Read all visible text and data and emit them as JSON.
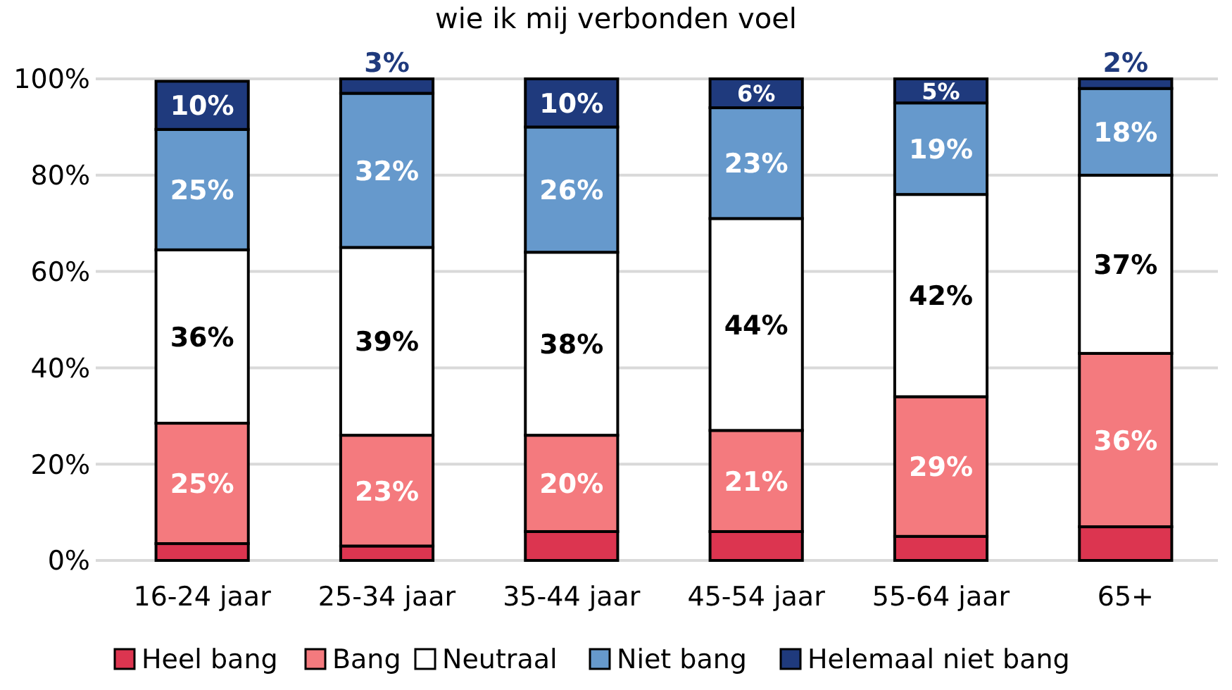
{
  "chart_data": {
    "type": "bar",
    "stacked": true,
    "title": "wie ik mij verbonden voel",
    "categories": [
      "16-24 jaar",
      "25-34 jaar",
      "35-44 jaar",
      "45-54 jaar",
      "55-64 jaar",
      "65+"
    ],
    "series": [
      {
        "name": "Heel bang",
        "color": "#dc3550",
        "values": [
          3.5,
          3,
          6,
          6,
          5,
          7
        ],
        "value_labels": [
          null,
          null,
          null,
          null,
          null,
          null
        ]
      },
      {
        "name": "Bang",
        "color": "#f47a7e",
        "values": [
          25,
          23,
          20,
          21,
          29,
          36
        ],
        "value_labels": [
          "25%",
          "23%",
          "20%",
          "21%",
          "29%",
          "36%"
        ]
      },
      {
        "name": "Neutraal",
        "color": "#ffffff",
        "values": [
          36,
          39,
          38,
          44,
          42,
          37
        ],
        "value_labels": [
          "36%",
          "39%",
          "38%",
          "44%",
          "42%",
          "37%"
        ]
      },
      {
        "name": "Niet bang",
        "color": "#6699cc",
        "values": [
          25,
          32,
          26,
          23,
          19,
          18
        ],
        "value_labels": [
          "25%",
          "32%",
          "26%",
          "23%",
          "19%",
          "18%"
        ]
      },
      {
        "name": "Helemaal niet bang",
        "color": "#1f3a7d",
        "values": [
          10,
          3,
          10,
          6,
          5,
          2
        ],
        "value_labels": [
          "10%",
          "3%",
          "10%",
          "6%",
          "5%",
          "2%"
        ]
      }
    ],
    "ylim": [
      0,
      100
    ],
    "yticks": [
      {
        "value": 0,
        "label": "0%"
      },
      {
        "value": 20,
        "label": "20%"
      },
      {
        "value": 40,
        "label": "40%"
      },
      {
        "value": 60,
        "label": "60%"
      },
      {
        "value": 80,
        "label": "80%"
      },
      {
        "value": 100,
        "label": "100%"
      }
    ],
    "grid": "y",
    "legend": "bottom"
  }
}
